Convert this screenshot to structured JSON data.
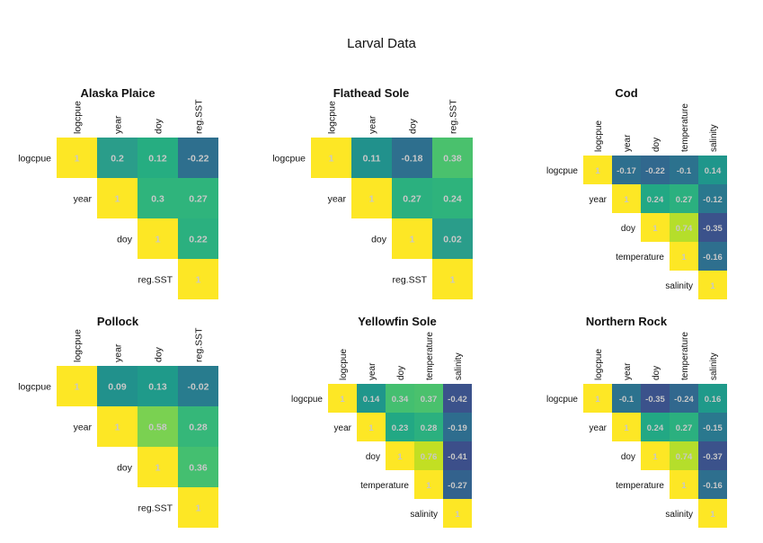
{
  "title": "Larval Data",
  "chart_data": [
    {
      "type": "heatmap",
      "title": "Alaska Plaice",
      "variables": [
        "logcpue",
        "year",
        "doy",
        "reg.SST"
      ],
      "matrix": [
        [
          1,
          0.2,
          0.12,
          -0.22
        ],
        [
          null,
          1,
          0.3,
          0.27
        ],
        [
          null,
          null,
          1,
          0.22
        ],
        [
          null,
          null,
          null,
          1
        ]
      ],
      "cell_colors": [
        [
          "#fde725",
          "#2a9d8a",
          "#26ad81",
          "#2e6f8e"
        ],
        [
          null,
          "#fde725",
          "#2fb47c",
          "#2fb47c"
        ],
        [
          null,
          null,
          "#fde725",
          "#2bb07f"
        ],
        [
          null,
          null,
          null,
          "#fde725"
        ]
      ]
    },
    {
      "type": "heatmap",
      "title": "Flathead Sole",
      "variables": [
        "logcpue",
        "year",
        "doy",
        "reg.SST"
      ],
      "matrix": [
        [
          1,
          0.11,
          -0.18,
          0.38
        ],
        [
          null,
          1,
          0.27,
          0.24
        ],
        [
          null,
          null,
          1,
          0.02
        ],
        [
          null,
          null,
          null,
          1
        ]
      ],
      "cell_colors": [
        [
          "#fde725",
          "#21918c",
          "#2e6f8e",
          "#4ac16d"
        ],
        [
          null,
          "#fde725",
          "#2bb07f",
          "#2eb37c"
        ],
        [
          null,
          null,
          "#fde725",
          "#2a9d8a"
        ],
        [
          null,
          null,
          null,
          "#fde725"
        ]
      ]
    },
    {
      "type": "heatmap",
      "title": "Cod",
      "variables": [
        "logcpue",
        "year",
        "doy",
        "temperature",
        "salinity"
      ],
      "matrix": [
        [
          1,
          -0.17,
          -0.22,
          -0.1,
          0.14
        ],
        [
          null,
          1,
          0.24,
          0.27,
          -0.12
        ],
        [
          null,
          null,
          1,
          0.74,
          -0.35
        ],
        [
          null,
          null,
          null,
          1,
          -0.16
        ],
        [
          null,
          null,
          null,
          null,
          1
        ]
      ],
      "cell_colors": [
        [
          "#fde725",
          "#2e6f8e",
          "#31688e",
          "#2c728e",
          "#1f968b"
        ],
        [
          null,
          "#fde725",
          "#22a884",
          "#2bb07f",
          "#2a788e"
        ],
        [
          null,
          null,
          "#fde725",
          "#b5de2b",
          "#3b528b"
        ],
        [
          null,
          null,
          null,
          "#fde725",
          "#2e6f8e"
        ],
        [
          null,
          null,
          null,
          null,
          "#fde725"
        ]
      ]
    },
    {
      "type": "heatmap",
      "title": "Pollock",
      "variables": [
        "logcpue",
        "year",
        "doy",
        "reg.SST"
      ],
      "matrix": [
        [
          1,
          0.09,
          0.13,
          -0.02
        ],
        [
          null,
          1,
          0.58,
          0.28
        ],
        [
          null,
          null,
          1,
          0.36
        ],
        [
          null,
          null,
          null,
          1
        ]
      ],
      "cell_colors": [
        [
          "#fde725",
          "#21918c",
          "#1f9a8a",
          "#287c8e"
        ],
        [
          null,
          "#fde725",
          "#7ad151",
          "#35b779"
        ],
        [
          null,
          null,
          "#fde725",
          "#44bf70"
        ],
        [
          null,
          null,
          null,
          "#fde725"
        ]
      ]
    },
    {
      "type": "heatmap",
      "title": "Yellowfin Sole",
      "variables": [
        "logcpue",
        "year",
        "doy",
        "temperature",
        "salinity"
      ],
      "matrix": [
        [
          1,
          0.14,
          0.34,
          0.37,
          -0.42
        ],
        [
          null,
          1,
          0.23,
          0.28,
          -0.19
        ],
        [
          null,
          null,
          1,
          0.76,
          -0.41
        ],
        [
          null,
          null,
          null,
          1,
          -0.27
        ],
        [
          null,
          null,
          null,
          null,
          1
        ]
      ],
      "cell_colors": [
        [
          "#fde725",
          "#1f968b",
          "#44bf70",
          "#4ac16d",
          "#3b528b"
        ],
        [
          null,
          "#fde725",
          "#22a884",
          "#2bb07f",
          "#2e6d8e"
        ],
        [
          null,
          null,
          "#fde725",
          "#c2df23",
          "#3c4f8a"
        ],
        [
          null,
          null,
          null,
          "#fde725",
          "#33628d"
        ],
        [
          null,
          null,
          null,
          null,
          "#fde725"
        ]
      ]
    },
    {
      "type": "heatmap",
      "title": "Northern Rock",
      "variables": [
        "logcpue",
        "year",
        "doy",
        "temperature",
        "salinity"
      ],
      "matrix": [
        [
          1,
          -0.1,
          -0.35,
          -0.24,
          0.16
        ],
        [
          null,
          1,
          0.24,
          0.27,
          -0.15
        ],
        [
          null,
          null,
          1,
          0.74,
          -0.37
        ],
        [
          null,
          null,
          null,
          1,
          -0.16
        ],
        [
          null,
          null,
          null,
          null,
          1
        ]
      ],
      "cell_colors": [
        [
          "#fde725",
          "#2c728e",
          "#3b528b",
          "#31688e",
          "#1f9a8a"
        ],
        [
          null,
          "#fde725",
          "#22a884",
          "#2bb07f",
          "#2a788e"
        ],
        [
          null,
          null,
          "#fde725",
          "#b5de2b",
          "#3b528b"
        ],
        [
          null,
          null,
          null,
          "#fde725",
          "#2e6f8e"
        ],
        [
          null,
          null,
          null,
          null,
          "#fde725"
        ]
      ]
    }
  ]
}
